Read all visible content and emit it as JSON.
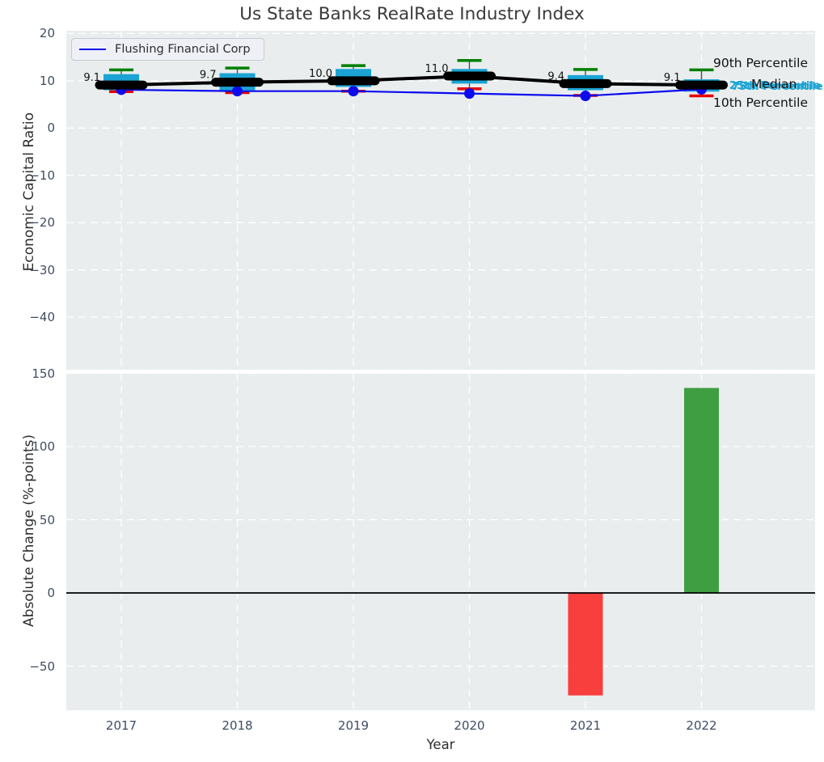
{
  "title": "Us State Banks RealRate Industry Index",
  "chart_data": [
    {
      "type": "box",
      "title": "Us State Banks RealRate Industry Index",
      "xlabel": "Year",
      "ylabel": "Economic Capital Ratio",
      "ylim": [
        -51,
        20.8
      ],
      "yticks": [
        20,
        10,
        0,
        -10,
        -20,
        -30,
        -40
      ],
      "grid": true,
      "years": [
        2017,
        2018,
        2019,
        2020,
        2021,
        2022
      ],
      "boxes": [
        {
          "year": 2017,
          "p10": 7.7,
          "p25": 8.0,
          "median": 9.1,
          "p75": 11.4,
          "p90": 12.3,
          "label": "9.1"
        },
        {
          "year": 2018,
          "p10": 7.5,
          "p25": 8.0,
          "median": 9.7,
          "p75": 11.6,
          "p90": 12.7,
          "label": "9.7"
        },
        {
          "year": 2019,
          "p10": 7.8,
          "p25": 8.7,
          "median": 10.0,
          "p75": 12.5,
          "p90": 13.2,
          "label": "10.0"
        },
        {
          "year": 2020,
          "p10": 8.3,
          "p25": 9.4,
          "median": 11.0,
          "p75": 12.5,
          "p90": 14.3,
          "label": "11.0"
        },
        {
          "year": 2021,
          "p10": 6.9,
          "p25": 8.0,
          "median": 9.4,
          "p75": 11.2,
          "p90": 12.4,
          "label": "9.4"
        },
        {
          "year": 2022,
          "p10": 6.8,
          "p25": 7.7,
          "median": 9.1,
          "p75": 10.3,
          "p90": 12.3,
          "label": "9.1"
        }
      ],
      "series": [
        {
          "name": "Flushing Financial Corp",
          "color": "#0b0bee",
          "values": [
            8.1,
            7.8,
            7.8,
            7.3,
            6.8,
            8.2
          ]
        }
      ],
      "legend": {
        "position": "upper left",
        "label": "Flushing Financial Corp"
      },
      "annotations": [
        {
          "text": "90th Percentile",
          "color": "#111111"
        },
        {
          "text": "Median",
          "color": "#111111"
        },
        {
          "text": "25th Percentile",
          "color": "#1ba3d4"
        },
        {
          "text": "75th Percentile",
          "color": "#1ba3d4"
        },
        {
          "text": "10th Percentile",
          "color": "#111111"
        }
      ],
      "colors": {
        "box": "#1ba3d4",
        "median": "#000000",
        "p90_cap": "#008000",
        "p10_cap": "#e60000",
        "whisker": "#4d4d4d"
      }
    },
    {
      "type": "bar",
      "xlabel": "Year",
      "ylabel": "Absolute Change (%-points)",
      "ylim": [
        -80,
        150
      ],
      "yticks": [
        150,
        100,
        50,
        0,
        -50
      ],
      "grid": true,
      "zero_line": true,
      "categories": [
        2017,
        2018,
        2019,
        2020,
        2021,
        2022
      ],
      "values": [
        null,
        null,
        null,
        null,
        -70,
        140
      ],
      "colors": {
        "positive": "#3f9e42",
        "negative": "#f93e3e"
      }
    }
  ]
}
